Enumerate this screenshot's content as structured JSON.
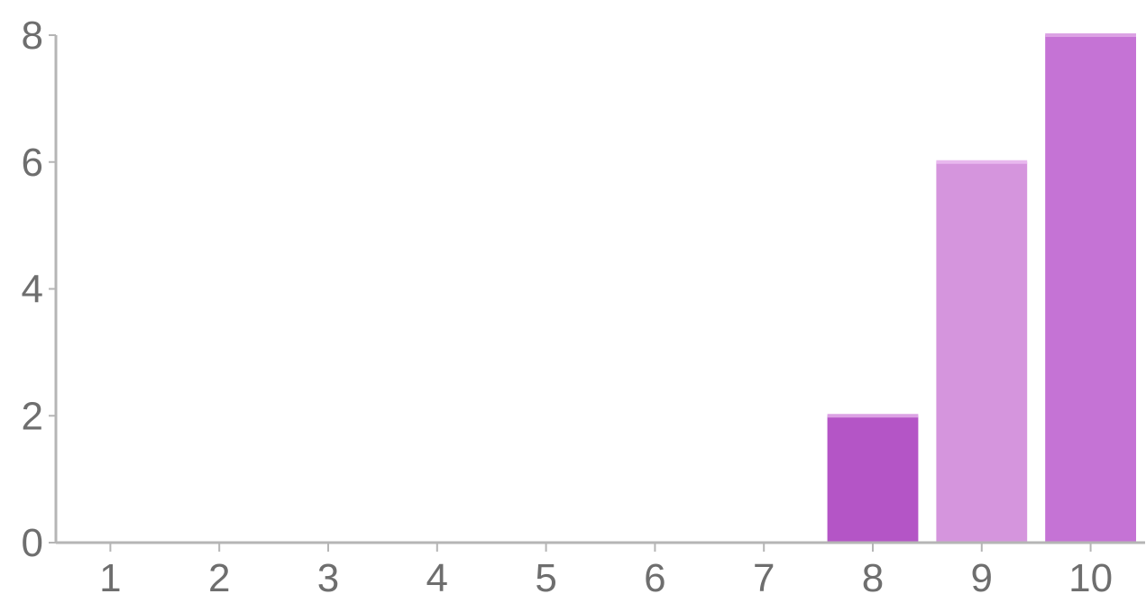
{
  "chart_data": {
    "type": "bar",
    "title": "",
    "xlabel": "",
    "ylabel": "",
    "categories": [
      "1",
      "2",
      "3",
      "4",
      "5",
      "6",
      "7",
      "8",
      "9",
      "10"
    ],
    "values": [
      0,
      0,
      0,
      0,
      0,
      0,
      0,
      2,
      6,
      8
    ],
    "bar_colors": [
      "#b455c6",
      "#b455c6",
      "#b455c6",
      "#b455c6",
      "#b455c6",
      "#b455c6",
      "#b455c6",
      "#b455c6",
      "#d595dd",
      "#c573d5"
    ],
    "bar_top_highlight": [
      "#dca2e4",
      "#dca2e4",
      "#dca2e4",
      "#dca2e4",
      "#dca2e4",
      "#dca2e4",
      "#dca2e4",
      "#dca2e4",
      "#e8b8ee",
      "#dca2e4"
    ],
    "ylim": [
      0,
      8
    ],
    "yticks": [
      "0",
      "2",
      "4",
      "6",
      "8"
    ],
    "grid": false,
    "legend": "none"
  }
}
